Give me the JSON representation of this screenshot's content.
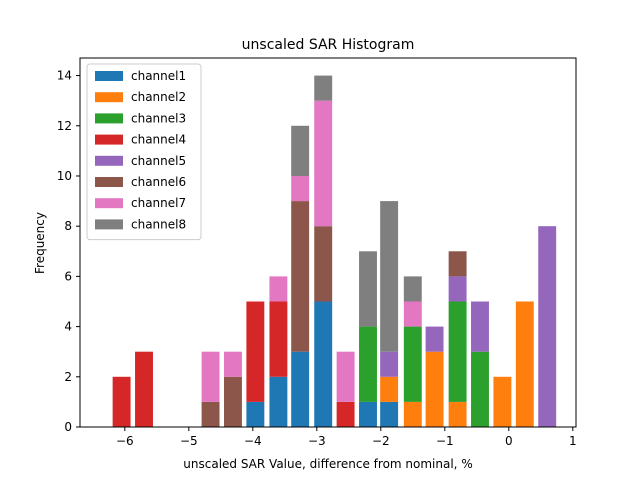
{
  "chart_data": {
    "type": "bar",
    "stacked": true,
    "title": "unscaled SAR Histogram",
    "xlabel": "unscaled SAR Value, difference from nominal, %",
    "ylabel": "Frequency",
    "xlim": [
      -6.7,
      1.05
    ],
    "ylim": [
      0,
      14.7
    ],
    "xticks": [
      -6,
      -5,
      -4,
      -3,
      -2,
      -1,
      0,
      1
    ],
    "xtick_labels": [
      "−6",
      "−5",
      "−4",
      "−3",
      "−2",
      "−1",
      "0",
      "1"
    ],
    "yticks": [
      0,
      2,
      4,
      6,
      8,
      10,
      12,
      14
    ],
    "ytick_labels": [
      "0",
      "2",
      "4",
      "6",
      "8",
      "10",
      "12",
      "14"
    ],
    "bin_width": 0.28,
    "legend_position": "upper-left",
    "series": [
      {
        "name": "channel1",
        "color": "#1f77b4",
        "bars": [
          {
            "x": -3.96,
            "value": 1
          },
          {
            "x": -3.6,
            "value": 2
          },
          {
            "x": -3.26,
            "value": 3
          },
          {
            "x": -2.9,
            "value": 5
          },
          {
            "x": -2.2,
            "value": 1
          },
          {
            "x": -1.87,
            "value": 1
          }
        ]
      },
      {
        "name": "channel2",
        "color": "#ff7f0e",
        "bars": [
          {
            "x": -1.87,
            "value": 1
          },
          {
            "x": -1.5,
            "value": 1
          },
          {
            "x": -1.16,
            "value": 3
          },
          {
            "x": -0.8,
            "value": 1
          },
          {
            "x": -0.1,
            "value": 2
          },
          {
            "x": 0.25,
            "value": 5
          }
        ]
      },
      {
        "name": "channel3",
        "color": "#2ca02c",
        "bars": [
          {
            "x": -2.2,
            "value": 3
          },
          {
            "x": -1.5,
            "value": 3
          },
          {
            "x": -0.8,
            "value": 4
          },
          {
            "x": -0.45,
            "value": 3
          }
        ]
      },
      {
        "name": "channel4",
        "color": "#d62728",
        "bars": [
          {
            "x": -6.05,
            "value": 2
          },
          {
            "x": -5.7,
            "value": 3
          },
          {
            "x": -3.96,
            "value": 4
          },
          {
            "x": -3.6,
            "value": 3
          },
          {
            "x": -2.55,
            "value": 1
          }
        ]
      },
      {
        "name": "channel5",
        "color": "#9467bd",
        "bars": [
          {
            "x": -1.87,
            "value": 1
          },
          {
            "x": -1.16,
            "value": 1
          },
          {
            "x": -0.8,
            "value": 1
          },
          {
            "x": -0.45,
            "value": 2
          },
          {
            "x": 0.6,
            "value": 8
          }
        ]
      },
      {
        "name": "channel6",
        "color": "#8c564b",
        "bars": [
          {
            "x": -4.66,
            "value": 1
          },
          {
            "x": -4.31,
            "value": 2
          },
          {
            "x": -3.26,
            "value": 6
          },
          {
            "x": -2.9,
            "value": 3
          },
          {
            "x": -0.8,
            "value": 1
          }
        ]
      },
      {
        "name": "channel7",
        "color": "#e377c2",
        "bars": [
          {
            "x": -4.66,
            "value": 2
          },
          {
            "x": -4.31,
            "value": 1
          },
          {
            "x": -3.6,
            "value": 1
          },
          {
            "x": -3.26,
            "value": 1
          },
          {
            "x": -2.9,
            "value": 5
          },
          {
            "x": -2.55,
            "value": 2
          },
          {
            "x": -1.5,
            "value": 1
          }
        ]
      },
      {
        "name": "channel8",
        "color": "#7f7f7f",
        "bars": [
          {
            "x": -3.26,
            "value": 2
          },
          {
            "x": -2.9,
            "value": 1
          },
          {
            "x": -2.2,
            "value": 3
          },
          {
            "x": -1.87,
            "value": 6
          },
          {
            "x": -1.5,
            "value": 1
          }
        ]
      }
    ]
  }
}
